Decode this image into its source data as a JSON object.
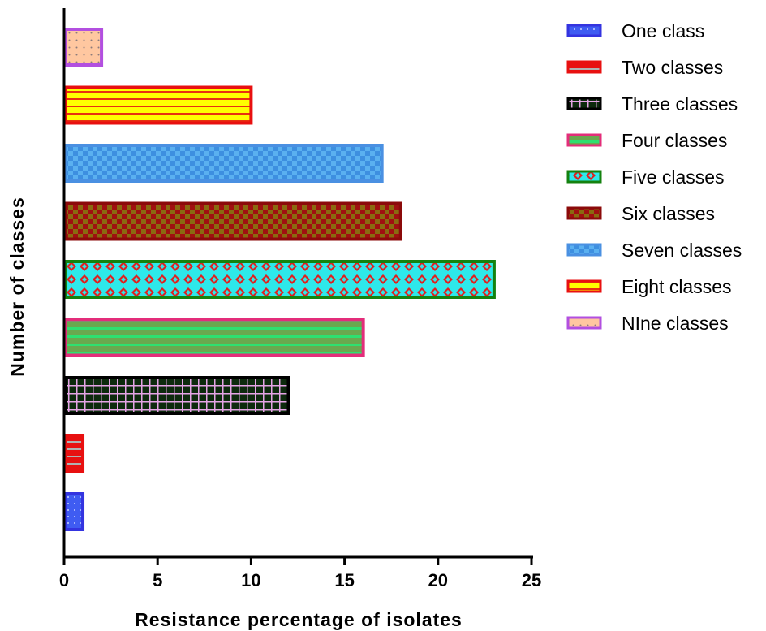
{
  "chart_data": {
    "type": "bar",
    "orientation": "horizontal",
    "xlabel": "Resistance percentage of isolates",
    "ylabel": "Number of classes",
    "xlim": [
      0,
      25
    ],
    "xticks": [
      "0",
      "5",
      "10",
      "15",
      "20",
      "25"
    ],
    "grid": false,
    "legend_position": "right",
    "series": [
      {
        "name": "One class",
        "value": 1,
        "fill": "#3f5cf2",
        "edge": "#3434e0",
        "pattern": "dots"
      },
      {
        "name": "Two classes",
        "value": 1,
        "fill": "#e81010",
        "edge": "#e81010",
        "pattern": "hlines-grey"
      },
      {
        "name": "Three classes",
        "value": 12,
        "fill": "#0d2a0d",
        "edge": "#000000",
        "pattern": "grid-pink"
      },
      {
        "name": "Four classes",
        "value": 16,
        "fill": "#4caf50",
        "edge": "#e32d7a",
        "pattern": "stripes-green"
      },
      {
        "name": "Five classes",
        "value": 23,
        "fill": "#2ee8ea",
        "edge": "#14820f",
        "pattern": "diamond-red"
      },
      {
        "name": "Six classes",
        "value": 18,
        "fill": "#a01010",
        "edge": "#8b0a0a",
        "pattern": "checker-olive"
      },
      {
        "name": "Seven classes",
        "value": 17,
        "fill": "#5ab0f0",
        "edge": "#4a90e2",
        "pattern": "checker-blue"
      },
      {
        "name": "Eight classes",
        "value": 10,
        "fill": "#ffff00",
        "edge": "#e81010",
        "pattern": "stripes-red"
      },
      {
        "name": "NIne classes",
        "value": 2,
        "fill": "#ffc7a0",
        "edge": "#b24fe0",
        "pattern": "dots-grey"
      }
    ]
  }
}
